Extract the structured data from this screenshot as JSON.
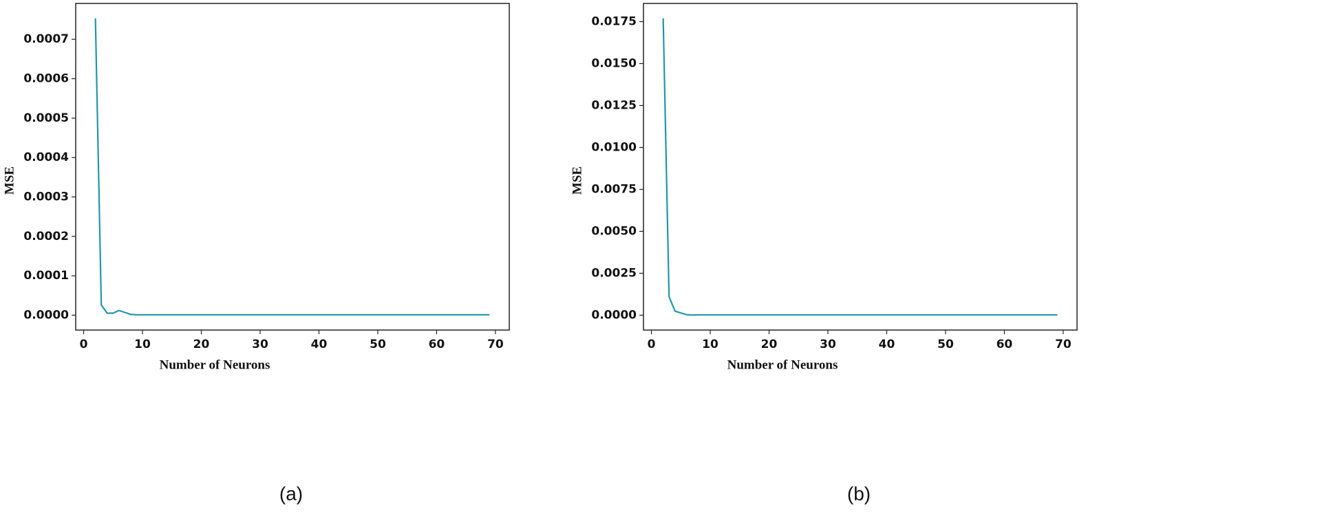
{
  "chart_data": [
    {
      "type": "line",
      "caption": "(a)",
      "xlabel": "Number of Neurons",
      "ylabel": "MSE",
      "x": [
        2,
        3,
        4,
        5,
        6,
        7,
        8,
        9,
        10,
        20,
        30,
        40,
        50,
        60,
        69
      ],
      "series": [
        {
          "color": "#2196a8",
          "values": [
            0.000753,
            2.6e-05,
            5e-06,
            5e-06,
            1.2e-05,
            7e-06,
            2e-06,
            1e-06,
            1e-06,
            1e-06,
            1e-06,
            1e-06,
            1e-06,
            1e-06,
            1e-06
          ]
        }
      ],
      "xlim": [
        -1.35,
        72.35
      ],
      "ylim": [
        -3.77e-05,
        0.000791
      ],
      "xticks": [
        0,
        10,
        20,
        30,
        40,
        50,
        60,
        70
      ],
      "yticks": [
        {
          "value": 0,
          "label": "0.0000"
        },
        {
          "value": 0.0001,
          "label": "0.0001"
        },
        {
          "value": 0.0002,
          "label": "0.0002"
        },
        {
          "value": 0.0003,
          "label": "0.0003"
        },
        {
          "value": 0.0004,
          "label": "0.0004"
        },
        {
          "value": 0.0005,
          "label": "0.0005"
        },
        {
          "value": 0.0006,
          "label": "0.0006"
        },
        {
          "value": 0.0007,
          "label": "0.0007"
        }
      ]
    },
    {
      "type": "line",
      "caption": "(b)",
      "xlabel": "Number of Neurons",
      "ylabel": "MSE",
      "x": [
        2,
        3,
        4,
        5,
        6,
        7,
        8,
        9,
        10,
        20,
        30,
        40,
        50,
        60,
        69
      ],
      "series": [
        {
          "color": "#2196a8",
          "values": [
            0.0177,
            0.0011,
            0.00025,
            0.00013,
            3e-05,
            1e-05,
            2e-05,
            2e-05,
            2e-05,
            2e-05,
            2e-05,
            2e-05,
            2e-05,
            2e-05,
            2e-05
          ]
        }
      ],
      "xlim": [
        -1.35,
        72.35
      ],
      "ylim": [
        -0.000885,
        0.018585
      ],
      "xticks": [
        0,
        10,
        20,
        30,
        40,
        50,
        60,
        70
      ],
      "yticks": [
        {
          "value": 0,
          "label": "0.0000"
        },
        {
          "value": 0.0025,
          "label": "0.0025"
        },
        {
          "value": 0.005,
          "label": "0.0050"
        },
        {
          "value": 0.0075,
          "label": "0.0075"
        },
        {
          "value": 0.01,
          "label": "0.0100"
        },
        {
          "value": 0.0125,
          "label": "0.0125"
        },
        {
          "value": 0.015,
          "label": "0.0150"
        },
        {
          "value": 0.0175,
          "label": "0.0175"
        }
      ]
    }
  ]
}
